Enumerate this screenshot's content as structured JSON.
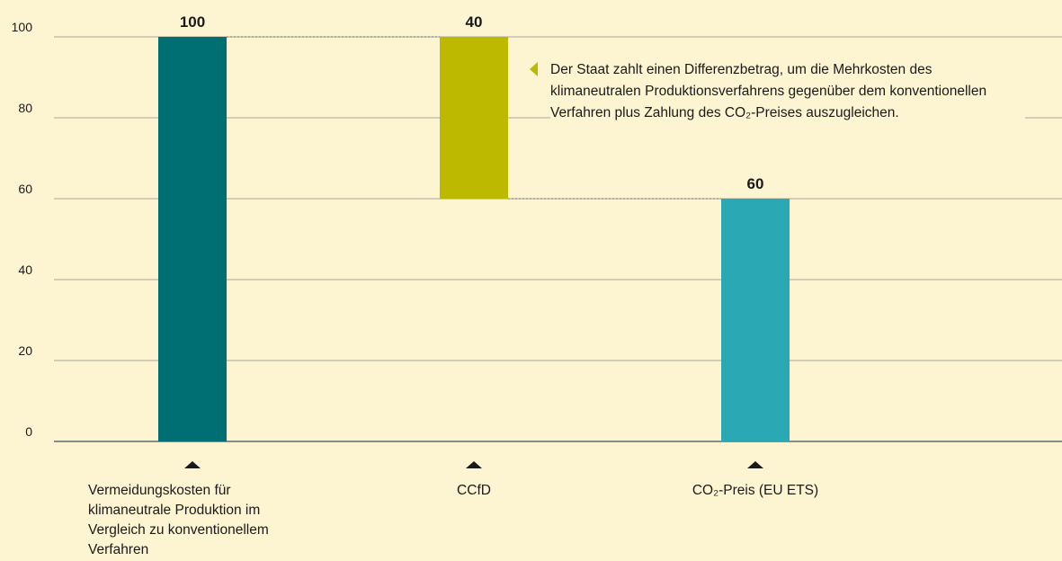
{
  "chart_data": {
    "type": "waterfall",
    "categories": [
      "Vermeidungskosten für klimaneutrale Produktion im Vergleich zu konventionellem Verfahren",
      "CCfD",
      "CO₂-Preis (EU ETS)"
    ],
    "values": [
      100,
      40,
      60
    ],
    "measure": [
      "total",
      "decrease",
      "total"
    ],
    "colors": [
      "#006f74",
      "#bdb800",
      "#2aa9b4"
    ],
    "ylim": [
      0,
      100
    ],
    "yticks": [
      0,
      20,
      40,
      60,
      80,
      100
    ],
    "grid": true,
    "annotation": "Der Staat zahlt einen Differenzbetrag, um die Mehrkosten des klimaneutralen Produktionsverfahrens gegenüber dem konventionellen Verfahren plus Zahlung des CO₂-Preises auszugleichen."
  }
}
